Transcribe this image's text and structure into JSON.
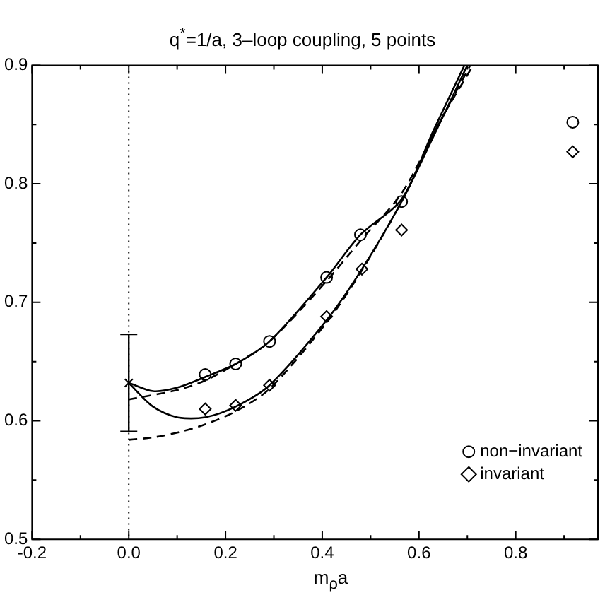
{
  "chart_data": {
    "type": "scatter",
    "title": "q$^{*}$=1/a, 3–loop coupling, 5 points",
    "xlabel": "m$_{ρ}$a",
    "xlim": [
      -0.2,
      0.97
    ],
    "xticks": [
      -0.2,
      {
        "value": 0,
        "label": "0.0"
      },
      0.2,
      0.4,
      0.6,
      0.8
    ],
    "ylim": [
      0.5,
      0.9
    ],
    "yticks": [
      0.5,
      0.6,
      0.7,
      0.8,
      0.9
    ],
    "grid": false,
    "legend": "bottom right",
    "ref_lines": [
      {
        "axis": "x",
        "value": 0,
        "color": "#000000",
        "line_style": "dotted"
      }
    ],
    "series": [
      {
        "name": "non−invariant",
        "type": "scatter",
        "marker": "circle",
        "color": "#000000",
        "x": [
          0.158,
          0.221,
          0.291,
          0.409,
          0.479,
          0.564,
          0.918
        ],
        "values": [
          0.639,
          0.648,
          0.667,
          0.721,
          0.757,
          0.785,
          0.852
        ]
      },
      {
        "name": "invariant",
        "type": "scatter",
        "marker": "diamond",
        "color": "#000000",
        "x": [
          0.158,
          0.221,
          0.291,
          0.409,
          0.482,
          0.564,
          0.918
        ],
        "values": [
          0.61,
          0.613,
          0.63,
          0.688,
          0.728,
          0.761,
          0.827
        ]
      },
      {
        "type": "scatter",
        "marker": "cross",
        "color": "#000000",
        "x": [
          0
        ],
        "values": [
          0.632
        ],
        "errors": [
          [
            0.591,
            0.673
          ]
        ]
      },
      {
        "type": "line",
        "line_style": "solid",
        "color": "#000000",
        "x": [
          0,
          0.05,
          0.1,
          0.158,
          0.221,
          0.291,
          0.409,
          0.479,
          0.564,
          0.63,
          0.694
        ],
        "values": [
          0.632,
          0.625,
          0.628,
          0.637,
          0.648,
          0.667,
          0.721,
          0.757,
          0.787,
          0.845,
          0.9
        ]
      },
      {
        "type": "line",
        "line_style": "dashed",
        "color": "#000000",
        "x": [
          0,
          0.1,
          0.158,
          0.221,
          0.291,
          0.409,
          0.479,
          0.564,
          0.64,
          0.706
        ],
        "values": [
          0.618,
          0.626,
          0.634,
          0.648,
          0.667,
          0.718,
          0.752,
          0.792,
          0.85,
          0.9
        ]
      },
      {
        "type": "line",
        "line_style": "solid",
        "color": "#000000",
        "x": [
          0,
          0.05,
          0.1,
          0.158,
          0.221,
          0.291,
          0.409,
          0.482,
          0.564,
          0.63,
          0.7
        ],
        "values": [
          0.632,
          0.612,
          0.603,
          0.603,
          0.612,
          0.63,
          0.685,
          0.728,
          0.785,
          0.84,
          0.9
        ]
      },
      {
        "type": "line",
        "line_style": "dashed",
        "color": "#000000",
        "x": [
          0,
          0.05,
          0.1,
          0.158,
          0.221,
          0.291,
          0.409,
          0.482,
          0.564,
          0.64,
          0.712
        ],
        "values": [
          0.584,
          0.586,
          0.59,
          0.597,
          0.608,
          0.627,
          0.683,
          0.727,
          0.785,
          0.85,
          0.9
        ]
      }
    ]
  }
}
